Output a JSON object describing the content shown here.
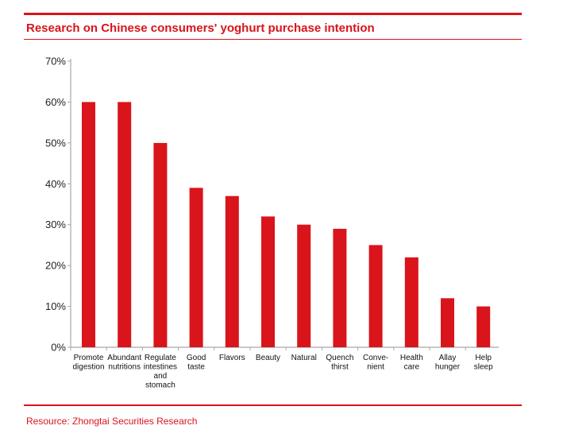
{
  "header": {
    "title": "Research on Chinese consumers' yoghurt purchase intention"
  },
  "footer": {
    "source": "Resource: Zhongtai Securities Research"
  },
  "chart_data": {
    "type": "bar",
    "title": "Research on Chinese consumers' yoghurt purchase intention",
    "xlabel": "",
    "ylabel": "",
    "ylim": [
      0,
      70
    ],
    "yticks": [
      "0%",
      "10%",
      "20%",
      "30%",
      "40%",
      "50%",
      "60%",
      "70%"
    ],
    "grid": false,
    "bar_color": "#d9141b",
    "categories": [
      [
        "Promote",
        "digestion"
      ],
      [
        "Abundant",
        "nutritions"
      ],
      [
        "Regulate",
        "intestines",
        "and",
        "stomach"
      ],
      [
        "Good",
        "taste"
      ],
      [
        "Flavors"
      ],
      [
        "Beauty"
      ],
      [
        "Natural"
      ],
      [
        "Quench",
        "thirst"
      ],
      [
        "Conve-",
        "nient"
      ],
      [
        "Health",
        "care"
      ],
      [
        "Allay",
        "hunger"
      ],
      [
        "Help",
        "sleep"
      ]
    ],
    "values": [
      60,
      60,
      50,
      39,
      37,
      32,
      30,
      29,
      25,
      22,
      12,
      10
    ]
  }
}
